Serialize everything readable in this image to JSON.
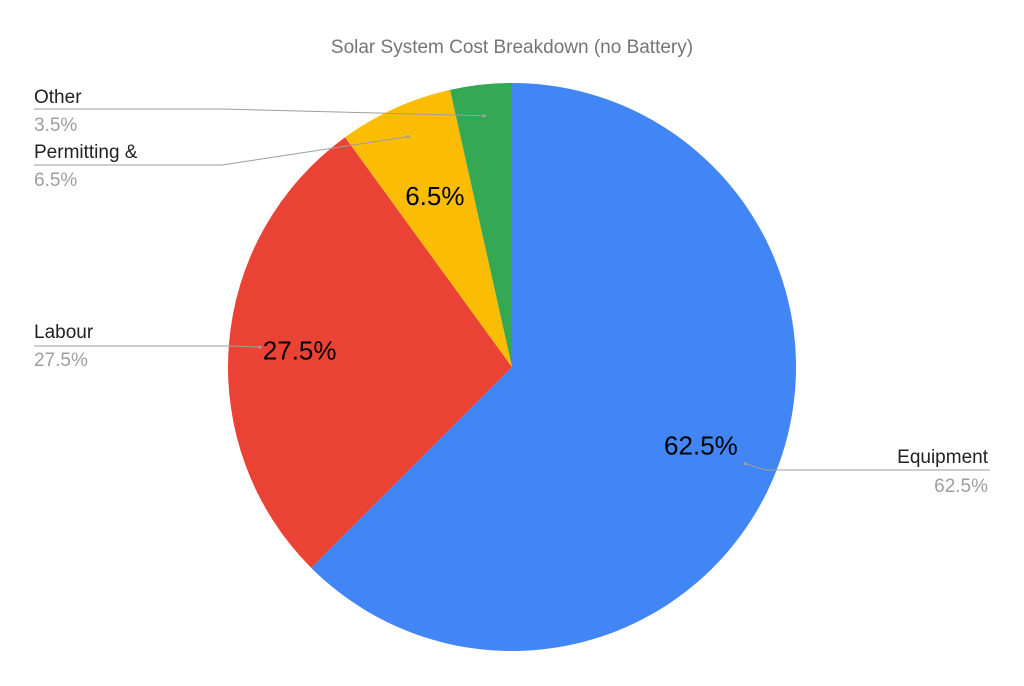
{
  "chart_data": {
    "type": "pie",
    "title": "Solar System Cost Breakdown (no Battery)",
    "slices": [
      {
        "label": "Equipment",
        "value": 62.5,
        "display": "62.5%",
        "color": "#4285f4"
      },
      {
        "label": "Labour",
        "value": 27.5,
        "display": "27.5%",
        "color": "#ea4335"
      },
      {
        "label": "Permitting &",
        "value": 6.5,
        "display": "6.5%",
        "color": "#fbbc04"
      },
      {
        "label": "Other",
        "value": 3.5,
        "display": "3.5%",
        "color": "#34a853"
      }
    ],
    "direction": "clockwise",
    "start": "top",
    "legend": "labeled leader lines"
  }
}
